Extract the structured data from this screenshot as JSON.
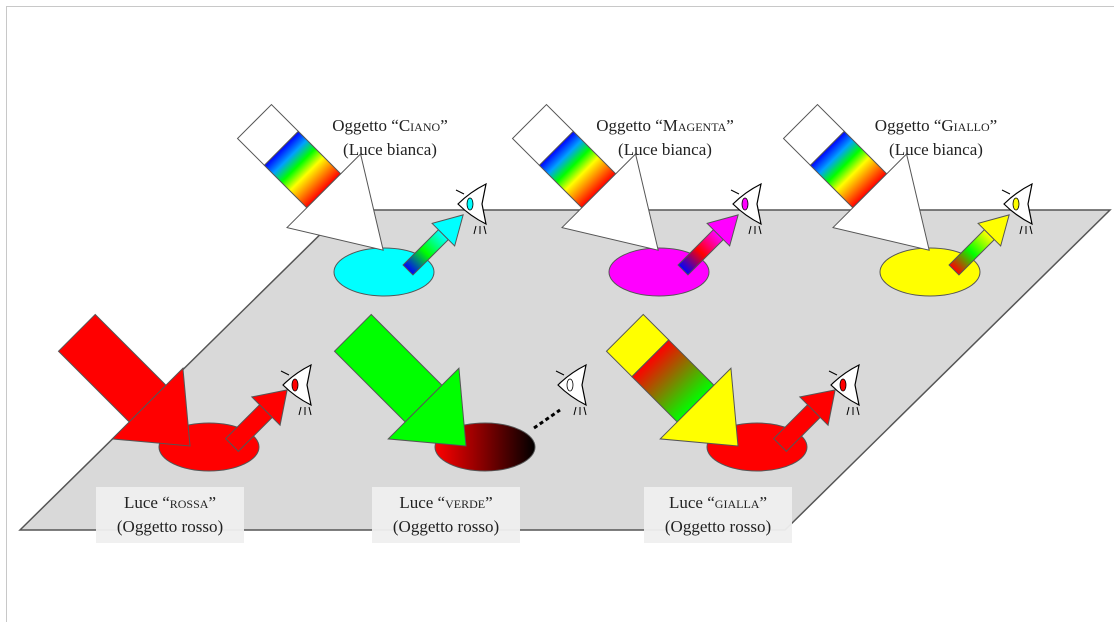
{
  "top_labels": [
    {
      "line1_prefix": "Oggetto “",
      "line1_name": "Ciano",
      "line1_suffix": "”",
      "line2": "(Luce bianca)"
    },
    {
      "line1_prefix": "Oggetto “",
      "line1_name": "Magenta",
      "line1_suffix": "”",
      "line2": "(Luce bianca)"
    },
    {
      "line1_prefix": "Oggetto “",
      "line1_name": "Giallo",
      "line1_suffix": "”",
      "line2": "(Luce bianca)"
    }
  ],
  "bottom_labels": [
    {
      "line1_prefix": "Luce “",
      "line1_name": "rossa",
      "line1_suffix": "”",
      "line2": "(Oggetto rosso)"
    },
    {
      "line1_prefix": "Luce “",
      "line1_name": "verde",
      "line1_suffix": "”",
      "line2": "(Oggetto rosso)"
    },
    {
      "line1_prefix": "Luce “",
      "line1_name": "gialla",
      "line1_suffix": "”",
      "line2": "(Oggetto rosso)"
    }
  ],
  "colors": {
    "plane": "#d9d9d9",
    "cyan": "#00ffff",
    "magenta": "#ff00ff",
    "yellow": "#ffff00",
    "red": "#ff0000",
    "green": "#00ff00"
  }
}
